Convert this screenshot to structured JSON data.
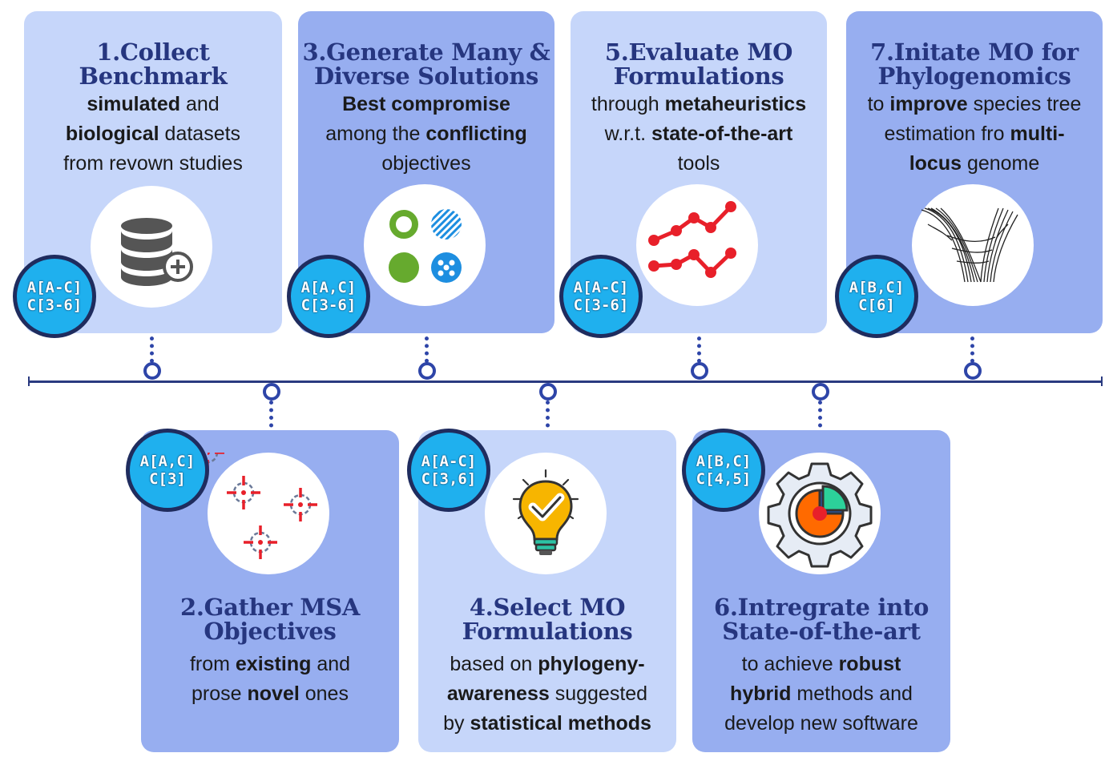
{
  "steps": [
    {
      "id": 1,
      "title": [
        "1.Collect",
        "Benchmark"
      ],
      "desc": [
        [
          {
            "t": "simulated",
            "b": true
          },
          {
            "t": " and",
            "b": false
          }
        ],
        [
          {
            "t": "biological",
            "b": true
          },
          {
            "t": " datasets",
            "b": false
          }
        ],
        [
          {
            "t": "from revown studies",
            "b": false
          }
        ]
      ],
      "badge": [
        "A[A-C]",
        "C[3-6]"
      ],
      "icon": "database-add-icon"
    },
    {
      "id": 2,
      "title": [
        "2.Gather MSA",
        "Objectives"
      ],
      "desc": [
        [
          {
            "t": "from ",
            "b": false
          },
          {
            "t": "existing",
            "b": true
          },
          {
            "t": " and",
            "b": false
          }
        ],
        [
          {
            "t": "prose ",
            "b": false
          },
          {
            "t": "novel",
            "b": true
          },
          {
            "t": " ones",
            "b": false
          }
        ]
      ],
      "badge": [
        "A[A,C]",
        "C[3]"
      ],
      "icon": "crosshair-targets-icon"
    },
    {
      "id": 3,
      "title": [
        "3.Generate Many &",
        "Diverse Solutions"
      ],
      "desc": [
        [
          {
            "t": "Best compromise",
            "b": true
          }
        ],
        [
          {
            "t": "among the ",
            "b": false
          },
          {
            "t": "conflicting",
            "b": true
          }
        ],
        [
          {
            "t": "objectives",
            "b": false
          }
        ]
      ],
      "badge": [
        "A[A,C]",
        "C[3-6]"
      ],
      "icon": "diverse-circles-icon"
    },
    {
      "id": 4,
      "title": [
        "4.Select MO",
        "Formulations"
      ],
      "desc": [
        [
          {
            "t": "based on ",
            "b": false
          },
          {
            "t": "phylogeny-",
            "b": true
          }
        ],
        [
          {
            "t": "awareness",
            "b": true
          },
          {
            "t": " suggested",
            "b": false
          }
        ],
        [
          {
            "t": "by ",
            "b": false
          },
          {
            "t": "statistical methods",
            "b": true
          }
        ]
      ],
      "badge": [
        "A[A-C]",
        "C[3,6]"
      ],
      "icon": "lightbulb-check-icon"
    },
    {
      "id": 5,
      "title": [
        "5.Evaluate MO",
        "Formulations"
      ],
      "desc": [
        [
          {
            "t": "through ",
            "b": false
          },
          {
            "t": "metaheuristics",
            "b": true
          }
        ],
        [
          {
            "t": "w.r.t. ",
            "b": false
          },
          {
            "t": "state-of-the-art",
            "b": true
          }
        ],
        [
          {
            "t": "tools",
            "b": false
          }
        ]
      ],
      "badge": [
        "A[A-C]",
        "C[3-6]"
      ],
      "icon": "line-chart-icon"
    },
    {
      "id": 6,
      "title": [
        "6.Intregrate into",
        "State-of-the-art"
      ],
      "desc": [
        [
          {
            "t": "to achieve ",
            "b": false
          },
          {
            "t": "robust",
            "b": true
          }
        ],
        [
          {
            "t": "hybrid",
            "b": true
          },
          {
            "t": " methods and",
            "b": false
          }
        ],
        [
          {
            "t": "develop new software",
            "b": false
          }
        ]
      ],
      "badge": [
        "A[B,C]",
        "C[4,5]"
      ],
      "icon": "gear-pie-chart-icon"
    },
    {
      "id": 7,
      "title": [
        "7.Initate MO for",
        "Phylogenomics"
      ],
      "desc": [
        [
          {
            "t": "to ",
            "b": false
          },
          {
            "t": "improve",
            "b": true
          },
          {
            "t": " species tree",
            "b": false
          }
        ],
        [
          {
            "t": "estimation fro ",
            "b": false
          },
          {
            "t": "multi-",
            "b": true
          }
        ],
        [
          {
            "t": "locus",
            "b": true
          },
          {
            "t": " genome",
            "b": false
          }
        ]
      ],
      "badge": [
        "A[B,C]",
        "C[6]"
      ],
      "icon": "phylogeny-tree-icon"
    }
  ],
  "colors": {
    "card_light": "#c6d6fa",
    "card_mid": "#97aef0",
    "title": "#26367f",
    "badge": "#1fb0ee",
    "badge_border": "#1f2c5e",
    "timeline": "#2a3a80"
  }
}
